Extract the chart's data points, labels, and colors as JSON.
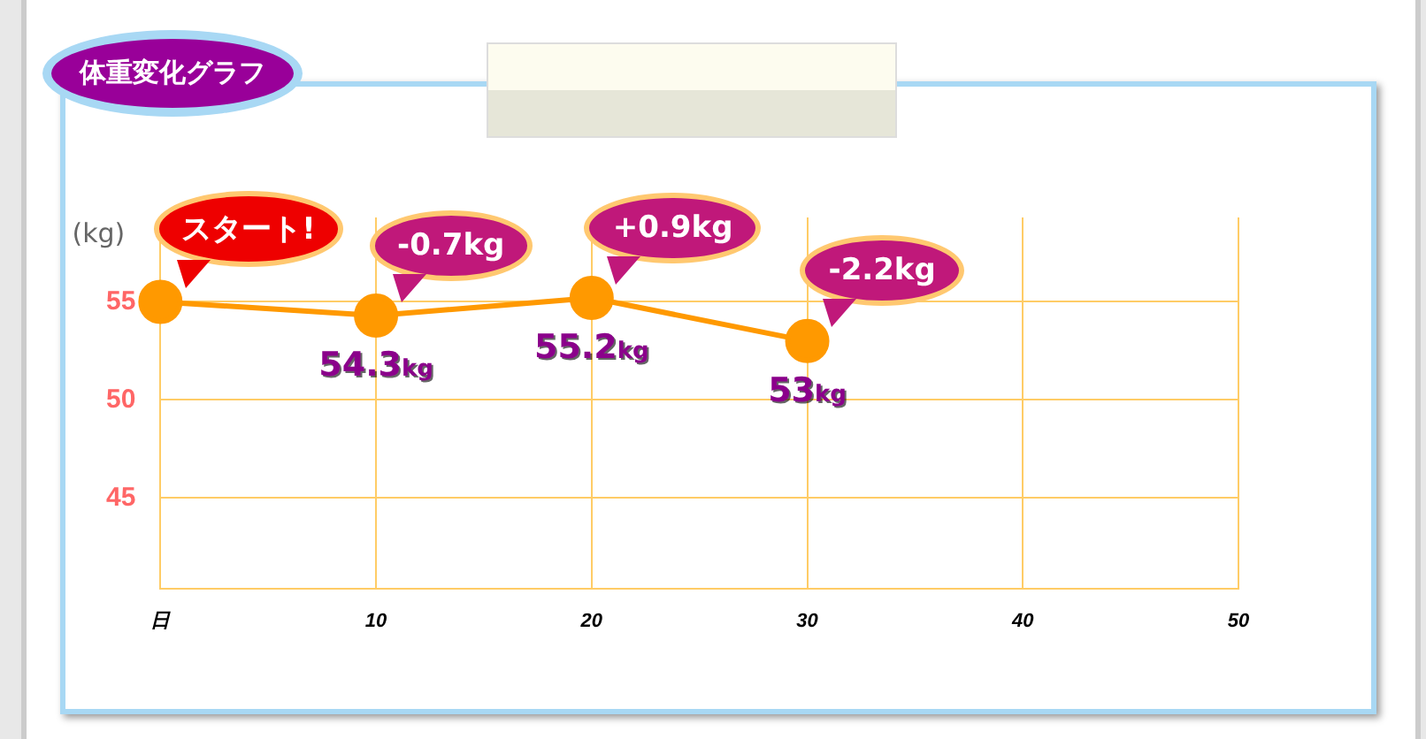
{
  "chart_data": {
    "type": "line",
    "title": "体重変化グラフ",
    "ylabel": "(kg)",
    "x": [
      0,
      10,
      20,
      30
    ],
    "values": [
      55,
      54.3,
      55.2,
      53
    ],
    "color": "#ff9900",
    "value_labels": [
      null,
      "54.3kg",
      "55.2kg",
      "53kg"
    ],
    "annotations": [
      {
        "text": "スタート!",
        "x": 0,
        "y": 55
      },
      {
        "text": "-0.7kg",
        "x": 10,
        "y": 54.3
      },
      {
        "text": "+0.9kg",
        "x": 20,
        "y": 55.2
      },
      {
        "text": "-2.2kg",
        "x": 30,
        "y": 53
      }
    ],
    "xlim": [
      0,
      50
    ],
    "xticks": [
      {
        "value": 0,
        "label": "日"
      },
      10,
      20,
      30,
      40,
      50
    ],
    "ylim": [
      40.4,
      59.3
    ],
    "yticks": [
      45,
      50,
      55
    ],
    "grid": true,
    "marker": "circle",
    "line_style": "solid",
    "legend": false
  }
}
